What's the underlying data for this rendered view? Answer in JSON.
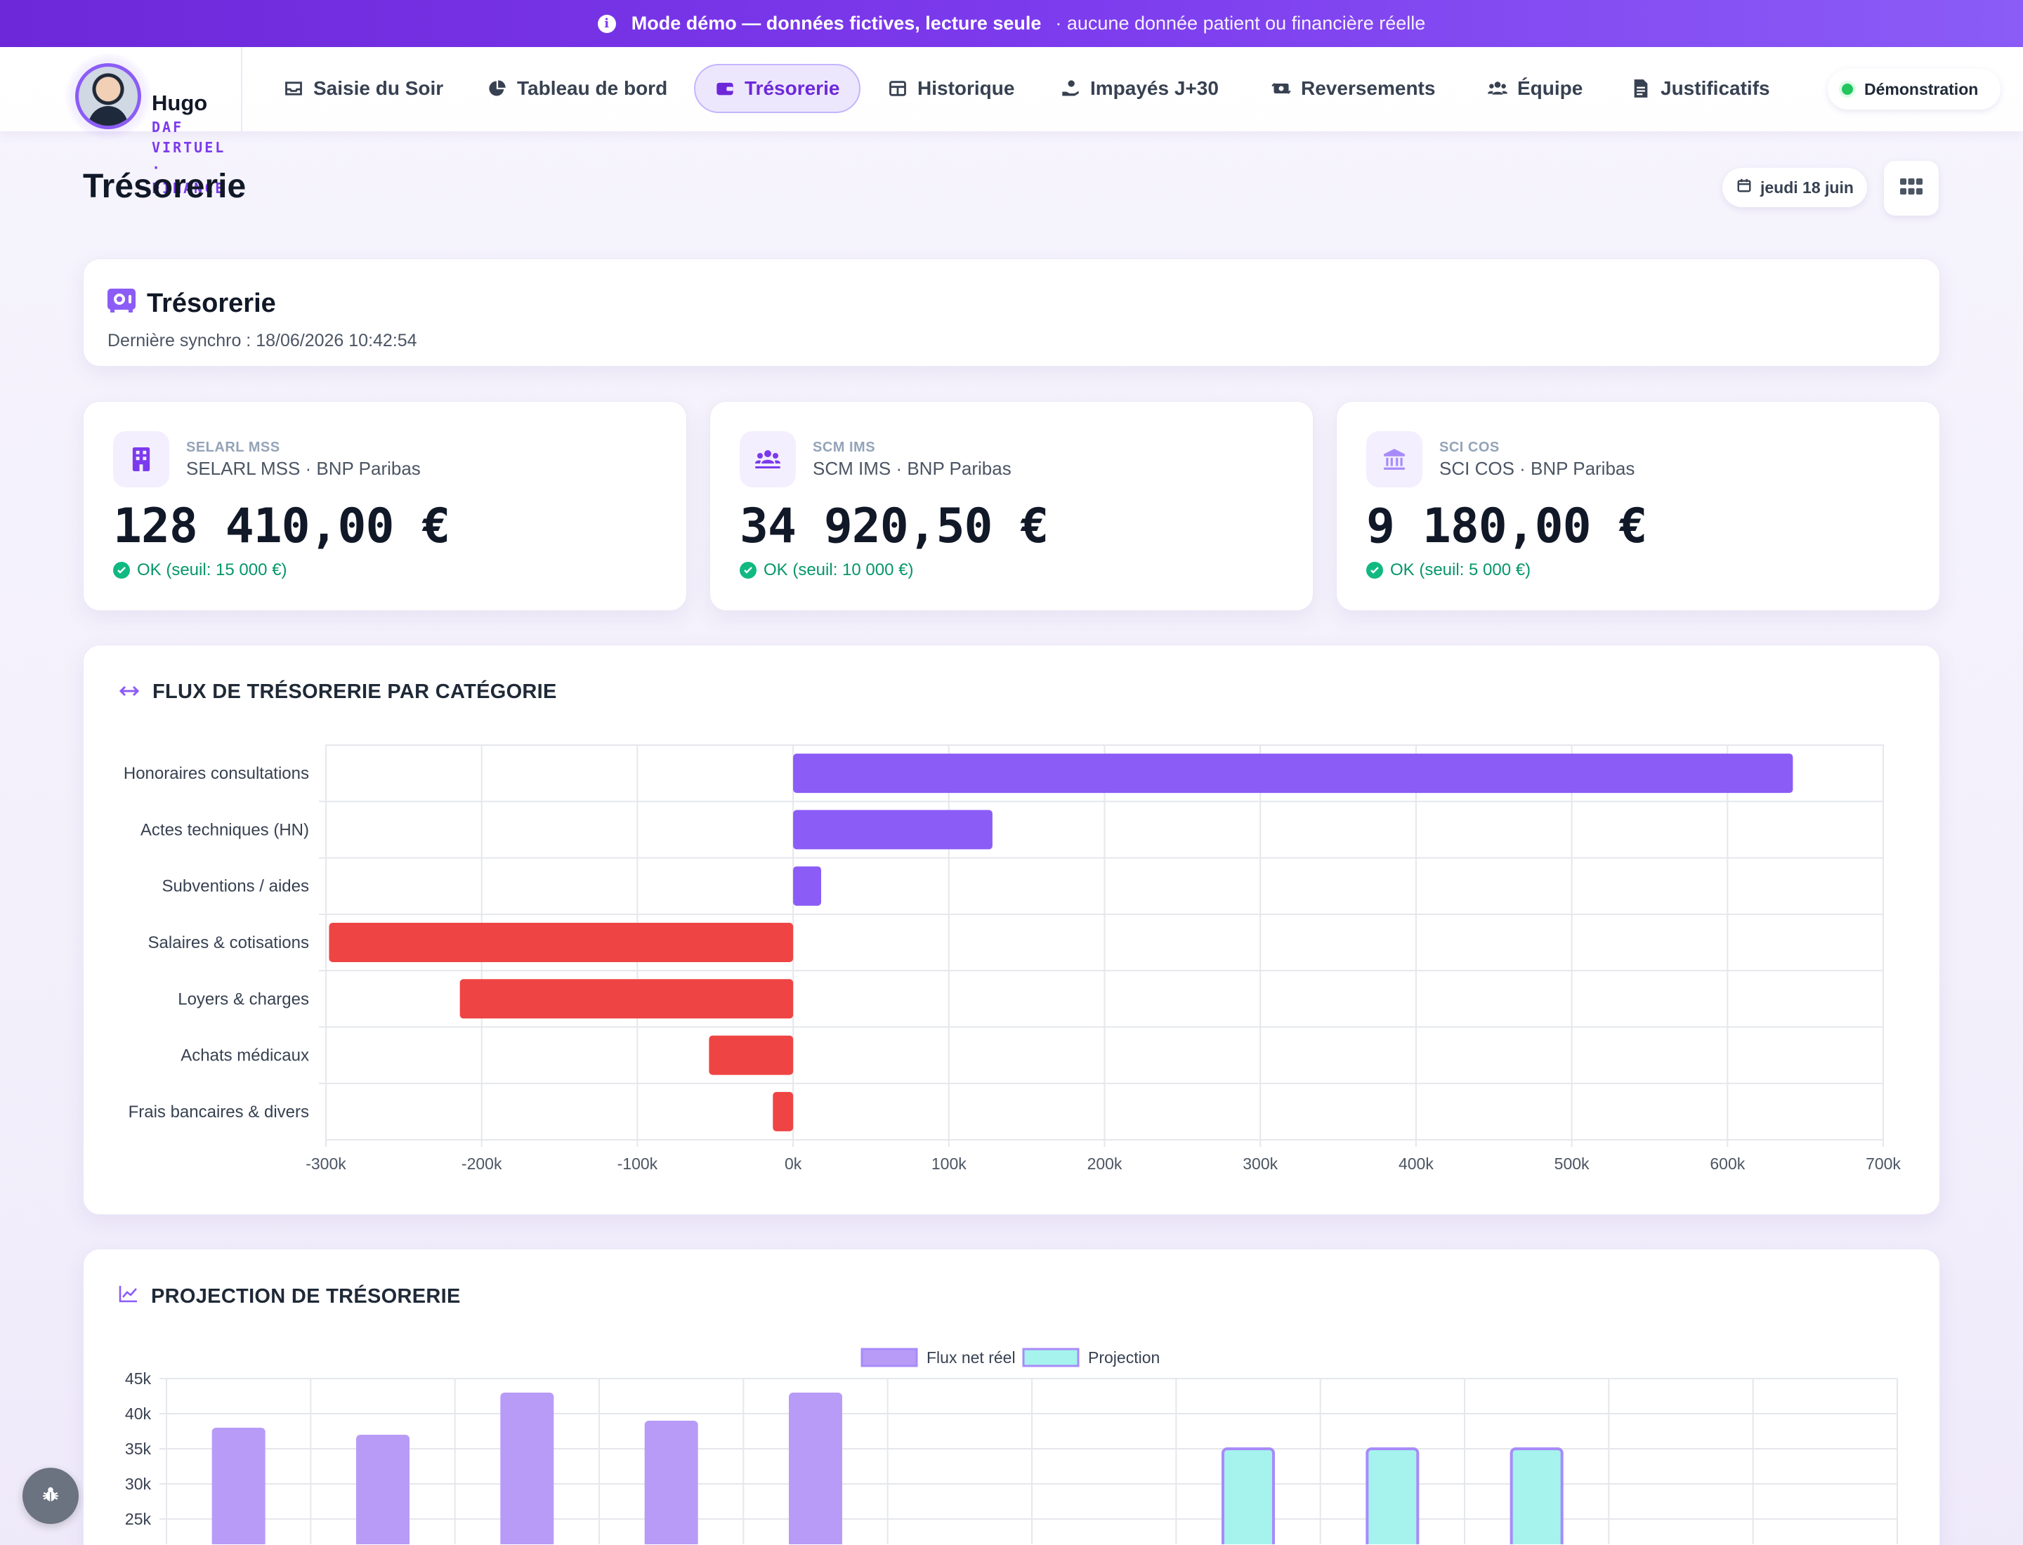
{
  "banner": {
    "title": "Mode démo — données fictives, lecture seule",
    "subtitle": "· aucune donnée patient ou financière réelle",
    "icon": "info-icon"
  },
  "brand": {
    "name": "Hugo",
    "sub": "DAF VIRTUEL · FINANCE"
  },
  "nav": {
    "tabs": [
      {
        "label": "Saisie du Soir",
        "icon": "inbox-icon"
      },
      {
        "label": "Tableau de bord",
        "icon": "pie-chart-icon"
      },
      {
        "label": "Trésorerie",
        "icon": "wallet-icon",
        "active": true
      },
      {
        "label": "Historique",
        "icon": "table-icon"
      },
      {
        "label": "Impayés J+30",
        "icon": "hand-coin-icon"
      },
      {
        "label": "Reversements",
        "icon": "money-transfer-icon"
      },
      {
        "label": "Équipe",
        "icon": "users-icon"
      },
      {
        "label": "Justificatifs",
        "icon": "document-icon"
      }
    ],
    "mode_label": "Démonstration"
  },
  "page": {
    "title": "Trésorerie",
    "date": "jeudi 18 juin"
  },
  "sync": {
    "title": "Trésorerie",
    "last_sync": "Dernière synchro : 18/06/2026 10:42:54"
  },
  "accounts": [
    {
      "code": "SELARL MSS",
      "label": "SELARL MSS · BNP Paribas",
      "amount": "128 410,00 €",
      "status": "OK (seuil: 15 000 €)",
      "icon": "building-icon"
    },
    {
      "code": "SCM IMS",
      "label": "SCM IMS · BNP Paribas",
      "amount": "34 920,50 €",
      "status": "OK (seuil: 10 000 €)",
      "icon": "users-group-icon"
    },
    {
      "code": "SCI COS",
      "label": "SCI COS · BNP Paribas",
      "amount": "9 180,00 €",
      "status": "OK (seuil: 5 000 €)",
      "icon": "bank-icon"
    }
  ],
  "colors": {
    "accent": "#7c3aed",
    "positive": "#8b5cf6",
    "negative": "#ef4444",
    "projection": "#a5f3ec",
    "ok": "#10b981"
  },
  "flux_section": {
    "title": "FLUX DE TRÉSORERIE PAR CATÉGORIE"
  },
  "projection_section": {
    "title": "PROJECTION DE TRÉSORERIE"
  },
  "chart_data": [
    {
      "type": "bar",
      "orientation": "horizontal",
      "title": "FLUX DE TRÉSORERIE PAR CATÉGORIE",
      "categories": [
        "Honoraires consultations",
        "Actes techniques (HN)",
        "Subventions / aides",
        "Salaires & cotisations",
        "Loyers & charges",
        "Achats médicaux",
        "Frais bancaires & divers"
      ],
      "values": [
        642000,
        128000,
        18000,
        -298000,
        -214000,
        -54000,
        -13000
      ],
      "xlim": [
        -300000,
        700000
      ],
      "xticks": [
        "-300k",
        "-200k",
        "-100k",
        "0k",
        "100k",
        "200k",
        "300k",
        "400k",
        "500k",
        "600k",
        "700k"
      ],
      "grid": true,
      "legend": "none"
    },
    {
      "type": "bar",
      "title": "PROJECTION DE TRÉSORERIE",
      "series": [
        {
          "name": "Flux net réel",
          "values": [
            38000,
            37000,
            43000,
            39000,
            43000,
            null,
            null,
            null,
            null,
            null,
            null,
            null
          ]
        },
        {
          "name": "Projection",
          "values": [
            null,
            null,
            null,
            null,
            null,
            null,
            null,
            35000,
            35000,
            35000,
            null,
            null
          ]
        }
      ],
      "yticks": [
        "45k",
        "40k",
        "35k",
        "30k",
        "25k"
      ],
      "ylim_visible": [
        25000,
        45000
      ],
      "grid": true,
      "legend": "top-center"
    }
  ]
}
